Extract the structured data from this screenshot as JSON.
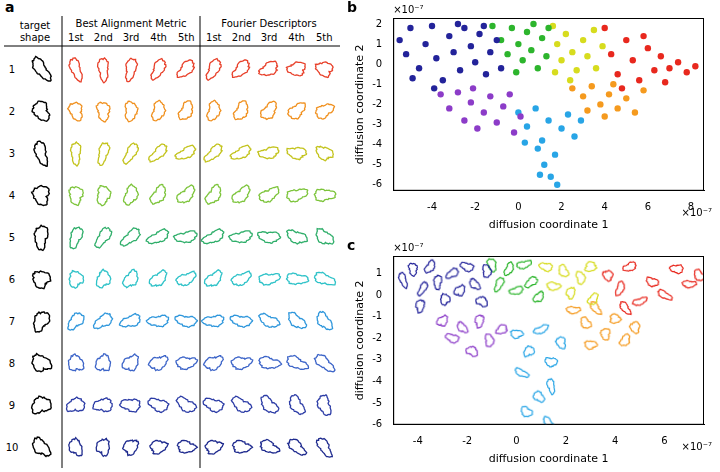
{
  "figure_a": {
    "panel_label": "a",
    "target_header": "target shape",
    "target_color": "#000000",
    "groups": [
      {
        "title": "Best Alignment Metric",
        "columns": [
          "1st",
          "2nd",
          "3rd",
          "4th",
          "5th"
        ]
      },
      {
        "title": "Fourier Descriptors",
        "columns": [
          "1st",
          "2nd",
          "3rd",
          "4th",
          "5th"
        ]
      }
    ],
    "rows": [
      {
        "label": "1",
        "color": "#e8402a"
      },
      {
        "label": "2",
        "color": "#f0901e"
      },
      {
        "label": "3",
        "color": "#c3c31c"
      },
      {
        "label": "4",
        "color": "#7cc43a"
      },
      {
        "label": "5",
        "color": "#2fae6a"
      },
      {
        "label": "6",
        "color": "#2ec2c8"
      },
      {
        "label": "7",
        "color": "#2f97dc"
      },
      {
        "label": "8",
        "color": "#3c64c8"
      },
      {
        "label": "9",
        "color": "#2c3ca6"
      },
      {
        "label": "10",
        "color": "#1e2a8e"
      }
    ]
  },
  "chart_data": [
    {
      "type": "scatter",
      "panel_label": "b",
      "x_label": "diffusion coordinate 1",
      "y_label": "diffusion coordinate 2",
      "x_exponent": "×10⁻⁷",
      "y_exponent": "×10⁻⁷",
      "grid": false,
      "xlim": [
        -5.8,
        8.6
      ],
      "xticks": [
        -4,
        -2,
        0,
        2,
        4,
        6,
        8
      ],
      "ylim": [
        -6.3,
        2.3
      ],
      "yticks": [
        -6,
        -5,
        -4,
        -3,
        -2,
        -1,
        0,
        1,
        2
      ],
      "series": [
        {
          "color": "#23239a",
          "marker": "dot",
          "x": [
            -5.5,
            -5.2,
            -5,
            -4.6,
            -4.3,
            -4,
            -3.8,
            -3.5,
            -3.2,
            -3,
            -2.7,
            -2.5,
            -2.2,
            -2,
            -1.8,
            -1.5,
            -1.3,
            -1,
            -0.8,
            -4.9,
            -3.9,
            -2.8,
            -1.6
          ],
          "values": [
            1.2,
            0.5,
            1.8,
            -0.2,
            1.0,
            1.9,
            0.3,
            -0.8,
            1.4,
            0.6,
            -0.3,
            1.8,
            0.9,
            0.1,
            1.5,
            -0.5,
            0.6,
            1.2,
            -0.2,
            -0.7,
            -1.2,
            2.0,
            1.9
          ]
        },
        {
          "color": "#2db52d",
          "marker": "dot",
          "x": [
            -1.2,
            -0.8,
            -0.5,
            -0.3,
            0,
            0.2,
            0.4,
            0.6,
            0.9,
            1.1,
            1.3,
            -0.1,
            0.7,
            1.4
          ],
          "values": [
            1.9,
            1.2,
            0.5,
            1.8,
            1.0,
            0.2,
            1.6,
            0.7,
            -0.2,
            1.3,
            0.4,
            -0.4,
            2.0,
            1.8
          ]
        },
        {
          "color": "#d7dc1e",
          "marker": "dot",
          "x": [
            1.6,
            1.8,
            2,
            2.2,
            2.5,
            2.7,
            3,
            3.2,
            3.5,
            3.6,
            2.4,
            1.7,
            3.9
          ],
          "values": [
            1.9,
            1.0,
            0.2,
            1.5,
            0.6,
            -0.3,
            1.2,
            0.4,
            1.7,
            -0.2,
            -0.8,
            -0.4,
            0.9
          ]
        },
        {
          "color": "#e8281e",
          "marker": "dot",
          "x": [
            4,
            4.3,
            4.6,
            5,
            5.3,
            5.6,
            6,
            6.3,
            6.6,
            7,
            7.4,
            7.8,
            8.2,
            4.8,
            5.8,
            6.8
          ],
          "values": [
            1.8,
            0.5,
            -0.5,
            1.2,
            0.2,
            -0.8,
            0.8,
            -0.3,
            0.4,
            -0.2,
            0.1,
            -0.4,
            -0.1,
            -1.2,
            1.4,
            -0.9
          ]
        },
        {
          "color": "#f59a1e",
          "marker": "dot",
          "x": [
            2.5,
            3,
            3.4,
            3.8,
            4.2,
            4.6,
            5,
            5.4,
            4,
            3.2,
            5.8,
            4.4
          ],
          "values": [
            -1.2,
            -1.6,
            -1.1,
            -2,
            -1.5,
            -2.2,
            -1.7,
            -2.4,
            -2.6,
            -2.3,
            -1.3,
            -1
          ]
        },
        {
          "color": "#8c3cc8",
          "marker": "dot",
          "x": [
            -3.6,
            -3.2,
            -2.8,
            -2.5,
            -2.2,
            -1.9,
            -1.6,
            -1.3,
            -1,
            -0.7,
            -0.4,
            -0.2,
            0.1,
            -2.1
          ],
          "values": [
            -1.5,
            -2.2,
            -1.4,
            -2.8,
            -1.9,
            -3.2,
            -2.4,
            -1.6,
            -2.9,
            -2.1,
            -1.5,
            -3.4,
            -2.6,
            -1.2
          ]
        },
        {
          "color": "#28a5e6",
          "marker": "dot",
          "x": [
            0,
            0.4,
            0.8,
            1.1,
            1.4,
            1.7,
            2,
            2.3,
            1.2,
            0.9,
            1.5,
            1.8,
            2.6,
            0.3,
            1,
            2.9
          ],
          "values": [
            -2.4,
            -3.1,
            -2.2,
            -3.8,
            -2.8,
            -4.5,
            -3.2,
            -2.5,
            -5,
            -4.2,
            -5.6,
            -6,
            -3.6,
            -3.9,
            -5.5,
            -2.8
          ]
        }
      ]
    },
    {
      "type": "scatter",
      "panel_label": "c",
      "x_label": "diffusion coordinate 1",
      "y_label": "diffusion coordinate 2",
      "x_exponent": "×10⁻⁷",
      "y_exponent": "×10⁻⁷",
      "grid": false,
      "xlim": [
        -5,
        7.6
      ],
      "xticks": [
        -4,
        -2,
        0,
        2,
        4,
        6
      ],
      "ylim": [
        -6,
        1.8
      ],
      "yticks": [
        -6,
        -5,
        -4,
        -3,
        -2,
        -1,
        0,
        1
      ],
      "series": [
        {
          "color": "#23239a",
          "marker": "outline",
          "x": [
            -4.6,
            -4.2,
            -3.8,
            -3.5,
            -3.2,
            -2.9,
            -2.6,
            -2.3,
            -2,
            -1.7,
            -1.4,
            -3.9,
            -1.2
          ],
          "values": [
            0.7,
            1.2,
            0.3,
            1.3,
            0.6,
            -0.2,
            1.0,
            0.2,
            1.3,
            0.5,
            -0.3,
            -0.5,
            1.1
          ]
        },
        {
          "color": "#8c3cc8",
          "marker": "outline",
          "x": [
            -3,
            -2.6,
            -2.2,
            -1.8,
            -1.5,
            -1.1,
            -0.6
          ],
          "values": [
            -1.2,
            -2,
            -1.5,
            -2.6,
            -1.2,
            -2.1,
            -1.6
          ]
        },
        {
          "color": "#2db52d",
          "marker": "outline",
          "x": [
            -1,
            -0.7,
            -0.3,
            0,
            0.3,
            0.6,
            0.9
          ],
          "values": [
            1.4,
            0.5,
            1.2,
            0.2,
            1.4,
            0.6,
            -0.1
          ]
        },
        {
          "color": "#d7dc1e",
          "marker": "outline",
          "x": [
            1.2,
            1.5,
            1.9,
            2.2,
            2.6,
            3,
            3.1
          ],
          "values": [
            1.3,
            0.4,
            1.1,
            0.1,
            0.8,
            1.3,
            -0.2
          ]
        },
        {
          "color": "#e8281e",
          "marker": "outline",
          "x": [
            3.7,
            4.2,
            4.6,
            5,
            5.5,
            6,
            6.5,
            7,
            7.4,
            4.4
          ],
          "values": [
            0.9,
            0.3,
            1.3,
            -0.3,
            0.6,
            0,
            1.2,
            0.5,
            0.9,
            -0.6
          ]
        },
        {
          "color": "#f59a1e",
          "marker": "outline",
          "x": [
            2.3,
            2.8,
            3.2,
            3.6,
            4,
            4.4,
            4.8,
            3
          ],
          "values": [
            -0.7,
            -1.3,
            -0.6,
            -1.8,
            -1.1,
            -2.1,
            -1.5,
            -2.3
          ]
        },
        {
          "color": "#28a5e6",
          "marker": "outline",
          "x": [
            0,
            0.5,
            1,
            1.4,
            0.2,
            0.9,
            1.4,
            0.4,
            1.3,
            1.8
          ],
          "values": [
            -1.8,
            -2.6,
            -1.6,
            -3.1,
            -3.6,
            -4.7,
            -4.2,
            -5.4,
            -5.9,
            -2.2
          ]
        }
      ]
    }
  ]
}
